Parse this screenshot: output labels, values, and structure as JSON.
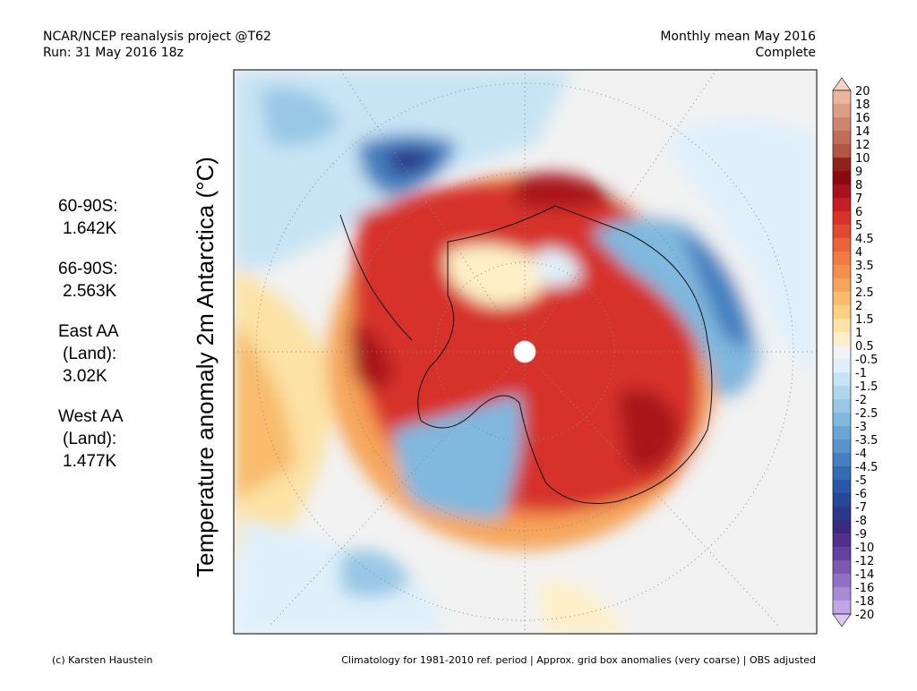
{
  "header": {
    "left": [
      "NCAR/NCEP reanalysis project @T62",
      "Run: 31 May 2016 18z"
    ],
    "right": [
      "Monthly mean May 2016",
      "Complete"
    ]
  },
  "axis_label": "Temperature anomaly 2m Antarctica (°C)",
  "stats": [
    {
      "label": "60-90S:",
      "lines": [
        "1.642K"
      ]
    },
    {
      "label": "66-90S:",
      "lines": [
        "2.563K"
      ]
    },
    {
      "label": "East AA",
      "lines": [
        "(Land):",
        "3.02K"
      ]
    },
    {
      "label": "West AA",
      "lines": [
        "(Land):",
        "1.477K"
      ]
    }
  ],
  "colorbar": {
    "labels": [
      "20",
      "18",
      "16",
      "14",
      "12",
      "10",
      "9",
      "8",
      "7",
      "6",
      "5",
      "4.5",
      "4",
      "3.5",
      "3",
      "2.5",
      "2",
      "1.5",
      "1",
      "0.5",
      "-0.5",
      "-1",
      "-1.5",
      "-2",
      "-2.5",
      "-3",
      "-3.5",
      "-4",
      "-4.5",
      "-5",
      "-6",
      "-7",
      "-8",
      "-9",
      "-10",
      "-12",
      "-14",
      "-16",
      "-18",
      "-20"
    ],
    "colors": [
      "#f6d0c0",
      "#ebb59d",
      "#dc9d85",
      "#cd866e",
      "#bf6e58",
      "#b05642",
      "#8e2418",
      "#8c0a14",
      "#a8121c",
      "#c21f25",
      "#d6322a",
      "#e04a30",
      "#e8623a",
      "#f07a44",
      "#f4904e",
      "#f6a65c",
      "#f8bc6c",
      "#fad082",
      "#fce2a4",
      "#fdf0c8",
      "#f2f2f2",
      "#e0f0fa",
      "#c8e4f4",
      "#b0d6ee",
      "#98c8e6",
      "#80b8de",
      "#6aa6d4",
      "#5694ca",
      "#4480c0",
      "#346cb4",
      "#2a58a6",
      "#244896",
      "#2a3888",
      "#3a2a80",
      "#50308c",
      "#6640a0",
      "#7c58b4",
      "#9270c6",
      "#a88ad6",
      "#c0a6e4",
      "#d8c8f2"
    ]
  },
  "footer": {
    "left": "(c) Karsten Haustein",
    "right": "Climatology for 1981-2010 ref. period | Approx. grid box anomalies (very coarse) | OBS adjusted"
  }
}
